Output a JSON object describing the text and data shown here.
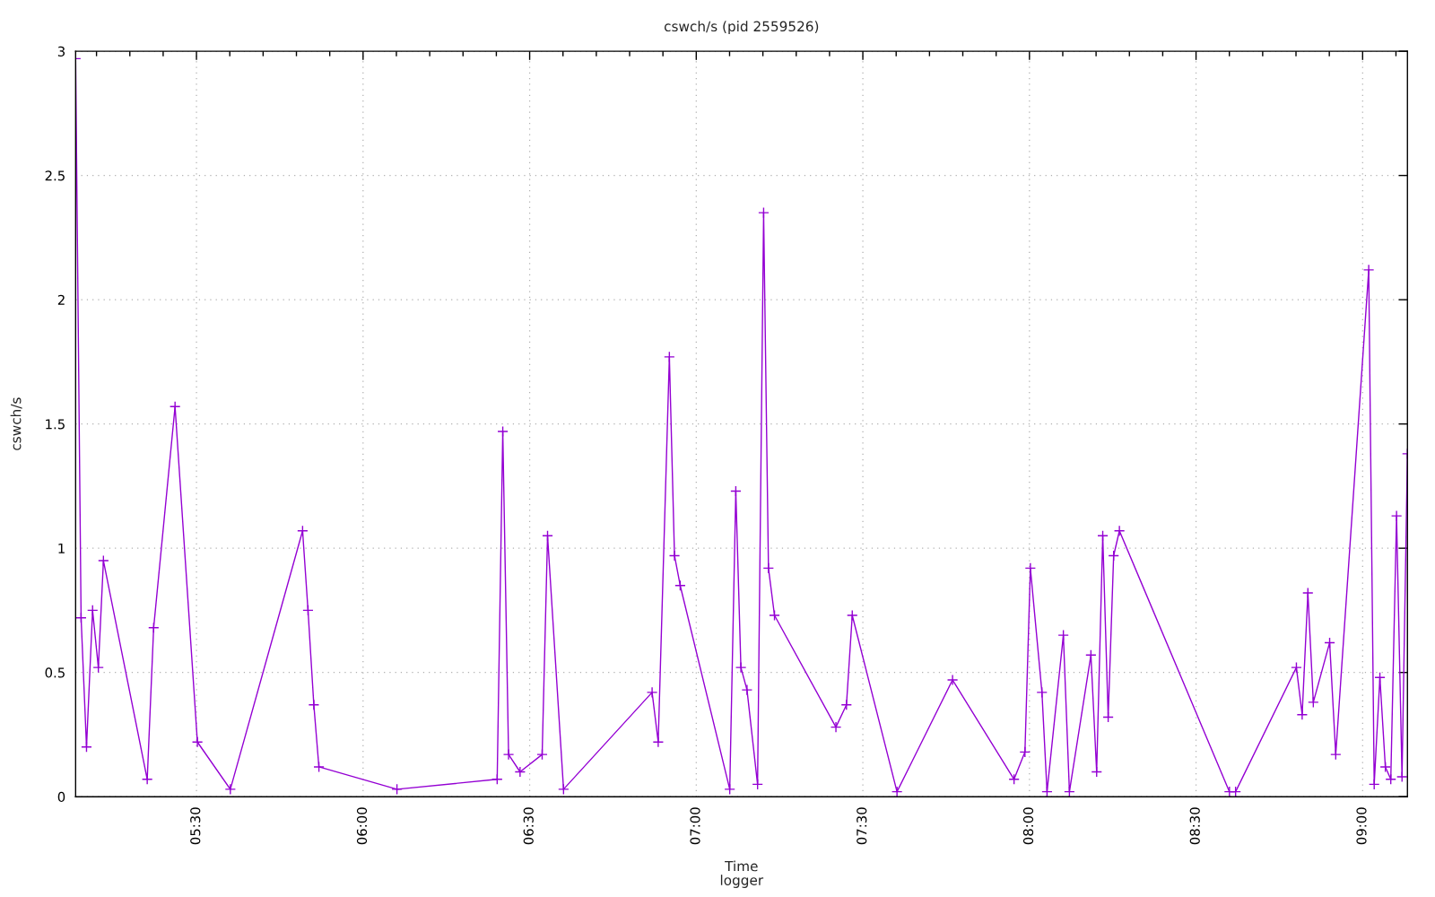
{
  "chart_data": {
    "type": "line",
    "title": "cswch/s (pid 2559526)",
    "xlabel": "Time",
    "ylabel": "cswch/s",
    "annotations": [
      "logger"
    ],
    "x": [
      5.1373,
      5.1537,
      5.17,
      5.1882,
      5.2055,
      5.2208,
      5.3522,
      5.3715,
      5.4357,
      5.5028,
      5.6017,
      5.8185,
      5.8348,
      5.8522,
      5.8675,
      6.1017,
      6.4025,
      6.4193,
      6.4367,
      6.4712,
      6.5375,
      6.5537,
      6.6017,
      6.8675,
      6.8858,
      6.9193,
      6.9347,
      6.9518,
      7.1005,
      7.1187,
      7.134,
      7.1523,
      7.184,
      7.2022,
      7.2167,
      7.2348,
      7.4192,
      7.4508,
      7.4682,
      7.6025,
      7.7692,
      7.9538,
      7.9865,
      8.0028,
      8.0375,
      8.0528,
      8.1018,
      8.12,
      8.1845,
      8.2017,
      8.22,
      8.2363,
      8.2527,
      8.27,
      8.6003,
      8.6187,
      8.8012,
      8.8185,
      8.8357,
      8.852,
      8.901,
      8.9193,
      9.0183,
      9.0347,
      9.0518,
      9.0682,
      9.0845,
      9.1018,
      9.1182,
      9.1345
    ],
    "values": [
      2.97,
      0.72,
      0.2,
      0.75,
      0.52,
      0.95,
      0.07,
      0.68,
      1.57,
      0.22,
      0.03,
      1.07,
      0.75,
      0.37,
      0.12,
      0.03,
      0.07,
      1.47,
      0.17,
      0.1,
      0.17,
      1.05,
      0.03,
      0.42,
      0.22,
      1.77,
      0.97,
      0.85,
      0.03,
      1.23,
      0.52,
      0.43,
      0.05,
      2.35,
      0.92,
      0.73,
      0.28,
      0.37,
      0.73,
      0.02,
      0.47,
      0.07,
      0.18,
      0.92,
      0.42,
      0.02,
      0.65,
      0.02,
      0.57,
      0.1,
      1.05,
      0.32,
      0.97,
      1.07,
      0.02,
      0.02,
      0.52,
      0.33,
      0.82,
      0.38,
      0.62,
      0.17,
      2.12,
      0.05,
      0.48,
      0.12,
      0.07,
      1.13,
      0.08,
      1.38
    ],
    "color": "#9400d3",
    "marker": "cross",
    "line_style": "solid",
    "grid": true,
    "xlim": [
      5.1373,
      9.1345
    ],
    "ylim": [
      0,
      3
    ],
    "xticks": [
      {
        "value": 5.2,
        "label": null
      },
      {
        "value": 5.3,
        "label": null
      },
      {
        "value": 5.4,
        "label": null
      },
      {
        "value": 5.5,
        "label": "05:30"
      },
      {
        "value": 5.6,
        "label": null
      },
      {
        "value": 5.7,
        "label": null
      },
      {
        "value": 5.8,
        "label": null
      },
      {
        "value": 5.9,
        "label": null
      },
      {
        "value": 6.0,
        "label": "06:00"
      },
      {
        "value": 6.1,
        "label": null
      },
      {
        "value": 6.2,
        "label": null
      },
      {
        "value": 6.3,
        "label": null
      },
      {
        "value": 6.4,
        "label": null
      },
      {
        "value": 6.5,
        "label": "06:30"
      },
      {
        "value": 6.6,
        "label": null
      },
      {
        "value": 6.7,
        "label": null
      },
      {
        "value": 6.8,
        "label": null
      },
      {
        "value": 6.9,
        "label": null
      },
      {
        "value": 7.0,
        "label": "07:00"
      },
      {
        "value": 7.1,
        "label": null
      },
      {
        "value": 7.2,
        "label": null
      },
      {
        "value": 7.3,
        "label": null
      },
      {
        "value": 7.4,
        "label": null
      },
      {
        "value": 7.5,
        "label": "07:30"
      },
      {
        "value": 7.6,
        "label": null
      },
      {
        "value": 7.7,
        "label": null
      },
      {
        "value": 7.8,
        "label": null
      },
      {
        "value": 7.9,
        "label": null
      },
      {
        "value": 8.0,
        "label": "08:00"
      },
      {
        "value": 8.1,
        "label": null
      },
      {
        "value": 8.2,
        "label": null
      },
      {
        "value": 8.3,
        "label": null
      },
      {
        "value": 8.4,
        "label": null
      },
      {
        "value": 8.5,
        "label": "08:30"
      },
      {
        "value": 8.6,
        "label": null
      },
      {
        "value": 8.7,
        "label": null
      },
      {
        "value": 8.8,
        "label": null
      },
      {
        "value": 8.9,
        "label": null
      },
      {
        "value": 9.0,
        "label": "09:00"
      },
      {
        "value": 9.1,
        "label": null
      }
    ],
    "yticks": [
      0,
      0.5,
      1,
      1.5,
      2,
      2.5,
      3
    ]
  }
}
